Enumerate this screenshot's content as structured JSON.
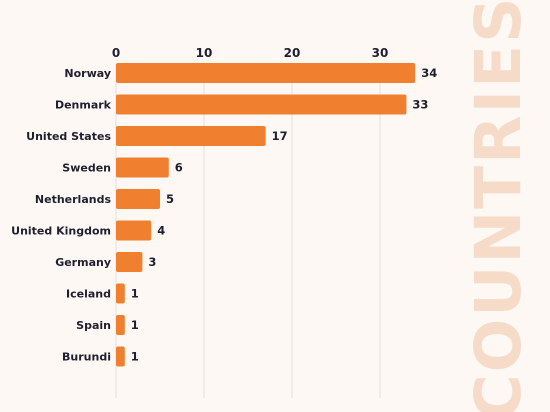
{
  "chart_data": {
    "type": "bar",
    "orientation": "horizontal",
    "title": "COUNTRIES",
    "categories": [
      "Norway",
      "Denmark",
      "United States",
      "Sweden",
      "Netherlands",
      "United Kingdom",
      "Germany",
      "Iceland",
      "Spain",
      "Burundi"
    ],
    "values": [
      34,
      33,
      17,
      6,
      5,
      4,
      3,
      1,
      1,
      1
    ],
    "xticks": [
      0,
      10,
      20,
      30
    ],
    "xlim": [
      0,
      34
    ],
    "axis_position": "top",
    "grid": true,
    "data_labels": true,
    "colors": {
      "bar": "#f07f2f",
      "title": "#f6dcc8",
      "grid": "#e9e0d8",
      "text": "#1f1f2e",
      "background": "#fdf8f4"
    }
  }
}
